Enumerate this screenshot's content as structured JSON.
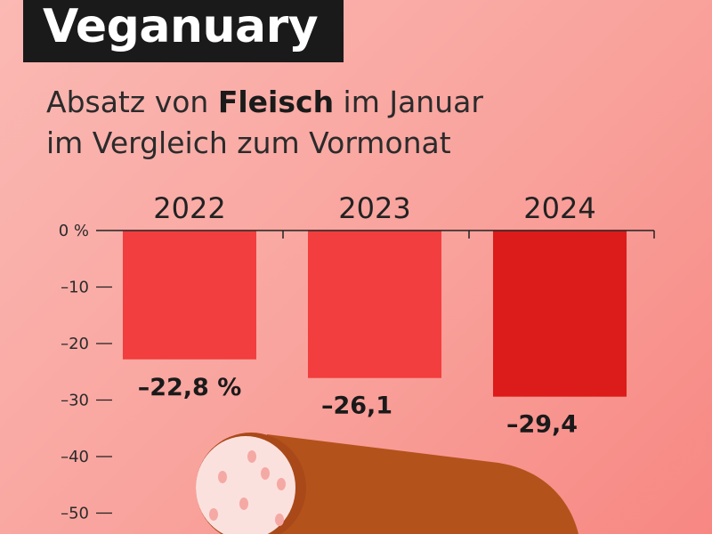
{
  "header": {
    "title": "Veganuary",
    "subtitle_prefix": "Absatz von ",
    "subtitle_bold": "Fleisch",
    "subtitle_suffix": " im Januar",
    "subtitle_line2": "im Vergleich zum Vormonat"
  },
  "colors": {
    "background": "#f9a29c",
    "bar_light": "#f23e3e",
    "bar_dark": "#dc1c1a",
    "sausage": "#b3531b",
    "sausage_cut": "#fbe1dd",
    "fat_spot": "#f5a9a4"
  },
  "illustration": "sausage-icon",
  "chart_data": {
    "type": "bar",
    "categories": [
      "2022",
      "2023",
      "2024"
    ],
    "values": [
      -22.8,
      -26.1,
      -29.4
    ],
    "value_labels": [
      "–22,8 %",
      "–26,1",
      "–29,4"
    ],
    "y_ticks": [
      0,
      -10,
      -20,
      -30,
      -40,
      -50
    ],
    "y_tick_labels": [
      "0 %",
      "–10",
      "–20",
      "–30",
      "–40",
      "–50"
    ],
    "ylim": [
      -55,
      0
    ],
    "title": "Absatz von Fleisch im Januar im Vergleich zum Vormonat",
    "xlabel": "",
    "ylabel": ""
  }
}
